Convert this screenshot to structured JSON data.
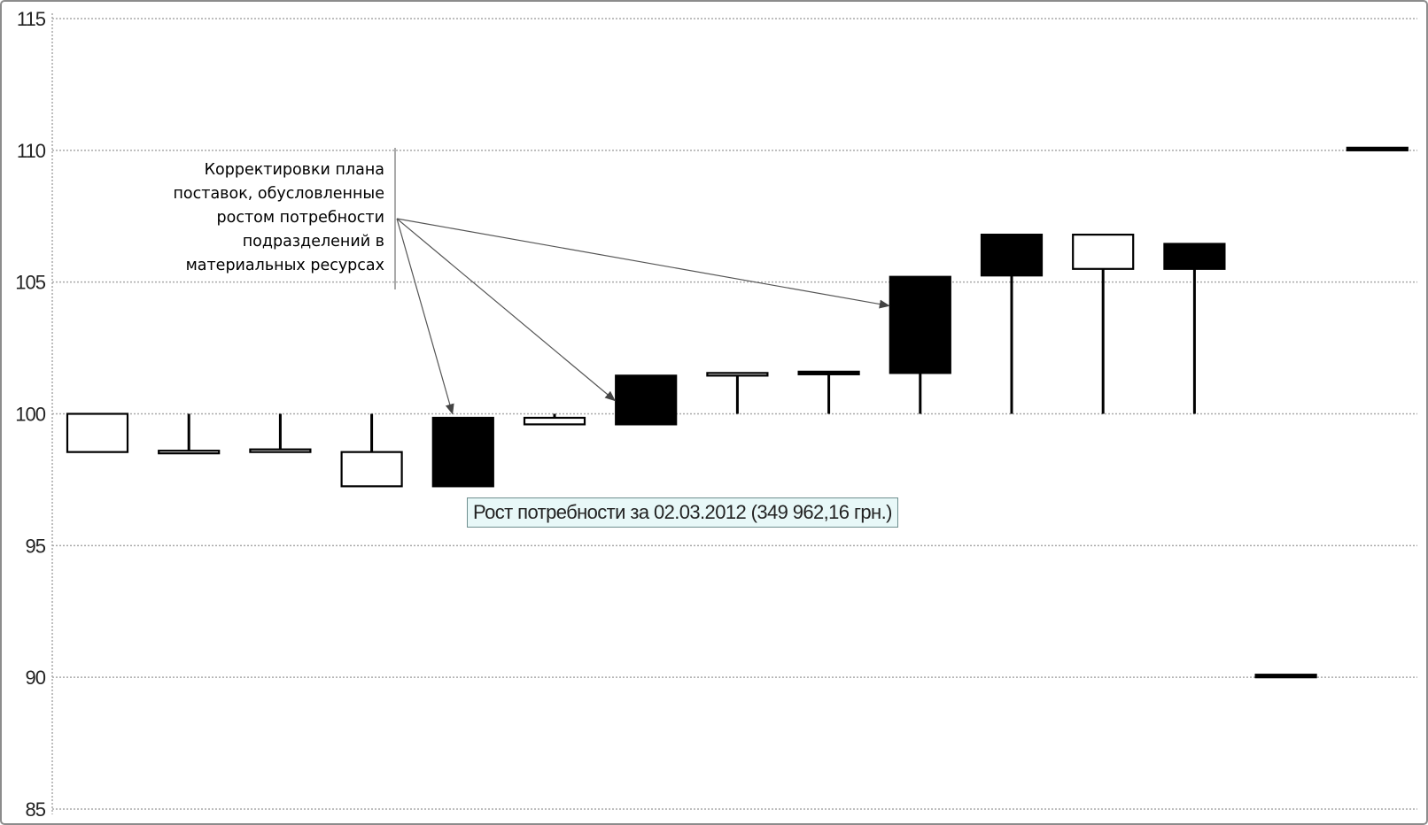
{
  "chart_data": {
    "type": "waterfall",
    "ylim": [
      85,
      115
    ],
    "yticks": [
      "115",
      "110",
      "105",
      "100",
      "95",
      "90",
      "85"
    ],
    "grid": true,
    "colors": {
      "increase": "#000000",
      "decrease": "#ffffff",
      "grid": "#a9a9a9",
      "arrow": "#555555"
    },
    "candles": [
      {
        "open": 100.0,
        "close": 98.55,
        "wick": null,
        "fill": "hollow"
      },
      {
        "open": 98.55,
        "close": 98.55,
        "wick": 100.0,
        "fill": "hollow"
      },
      {
        "open": 98.6,
        "close": 98.6,
        "wick": 100.0,
        "fill": "hollow"
      },
      {
        "open": 98.55,
        "close": 97.25,
        "wick": 100.0,
        "fill": "hollow"
      },
      {
        "open": 97.25,
        "close": 99.85,
        "wick": null,
        "fill": "solid"
      },
      {
        "open": 99.85,
        "close": 99.6,
        "wick": 100.0,
        "fill": "hollow"
      },
      {
        "open": 99.6,
        "close": 101.45,
        "wick": null,
        "fill": "solid"
      },
      {
        "open": 101.5,
        "close": 101.5,
        "wick": 100.0,
        "fill": "hollow"
      },
      {
        "open": 101.55,
        "close": 101.55,
        "wick": 100.0,
        "fill": "solid"
      },
      {
        "open": 101.55,
        "close": 105.2,
        "wick": 100.0,
        "fill": "solid"
      },
      {
        "open": 105.25,
        "close": 106.8,
        "wick": 100.0,
        "fill": "solid"
      },
      {
        "open": 106.8,
        "close": 105.5,
        "wick": 100.0,
        "fill": "hollow"
      },
      {
        "open": 105.5,
        "close": 106.45,
        "wick": 100.0,
        "fill": "solid"
      },
      {
        "open": 90.05,
        "close": 90.05,
        "wick": null,
        "fill": "solid"
      },
      {
        "open": 110.05,
        "close": 110.05,
        "wick": null,
        "fill": "solid"
      }
    ],
    "annotation": {
      "lines": [
        "Корректировки плана",
        "поставок, обусловленные",
        "ростом потребности",
        "подразделений в",
        "материальных ресурсах"
      ],
      "arrow_targets": [
        {
          "candle": 4,
          "y": 100.0
        },
        {
          "candle": 6,
          "y": 100.5
        },
        {
          "candle": 9,
          "y": 104.1
        }
      ]
    },
    "tooltip": "Рост потребности за 02.03.2012 (349 962,16 грн.)"
  }
}
